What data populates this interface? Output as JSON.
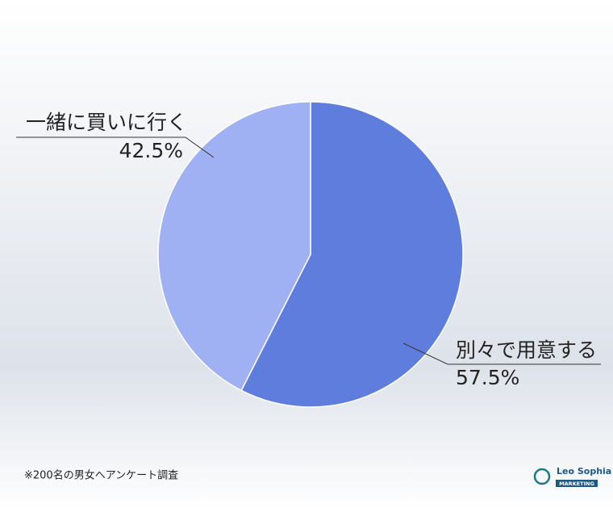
{
  "chart_data": {
    "type": "pie",
    "categories": [
      "別々で用意する",
      "一緒に買いに行く"
    ],
    "values": [
      57.5,
      42.5
    ],
    "value_labels": [
      "57.5%",
      "42.5%"
    ],
    "colors": [
      "#5f7ddc",
      "#9fb1f2"
    ],
    "note": "※200名の男女へアンケート調査"
  },
  "logo": {
    "name": "Leo Sophia",
    "tagline": "MARKETING"
  }
}
